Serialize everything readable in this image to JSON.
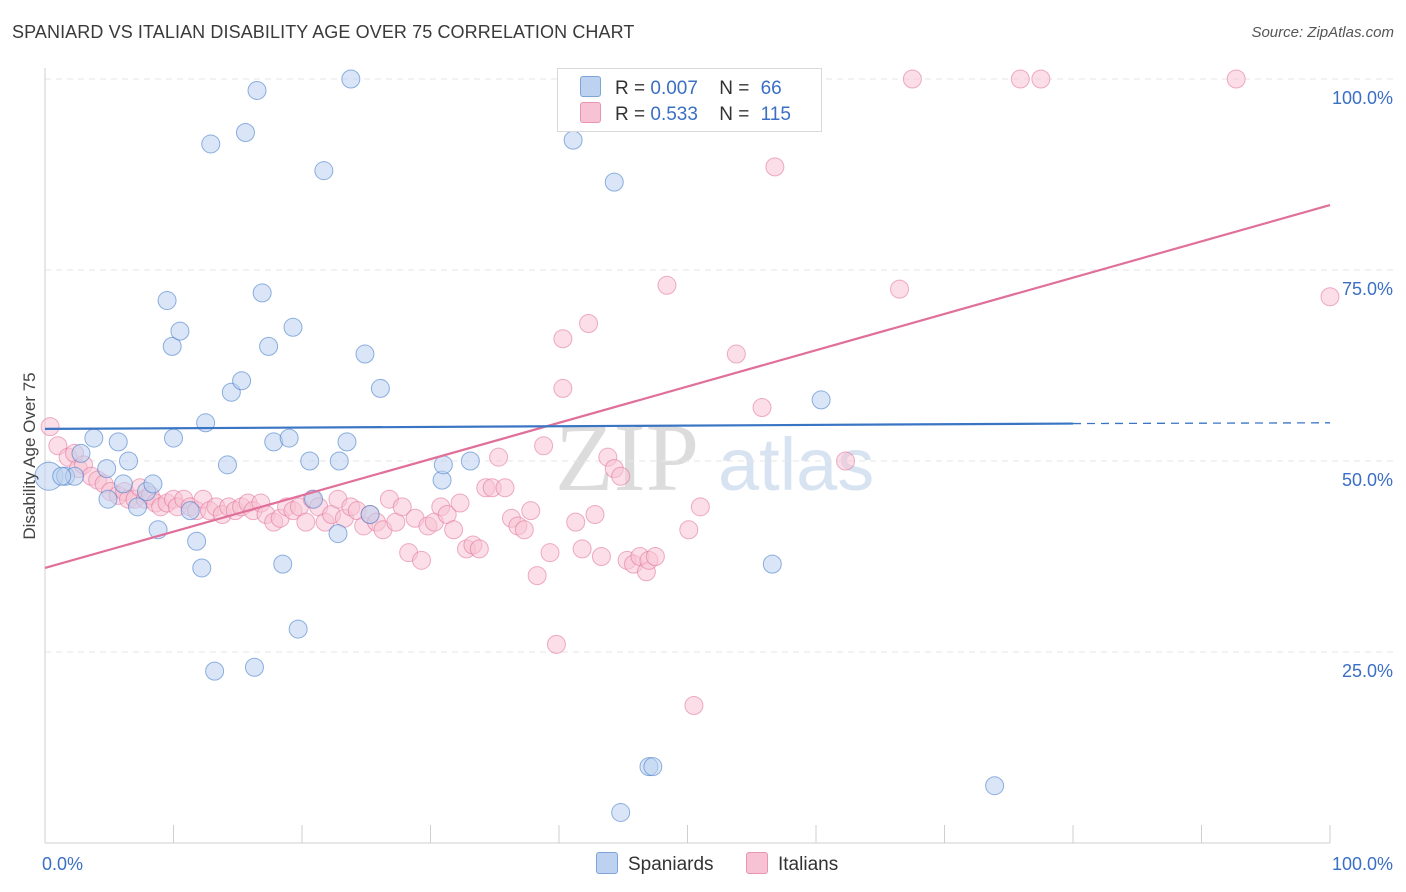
{
  "header": {
    "title": "SPANIARD VS ITALIAN DISABILITY AGE OVER 75 CORRELATION CHART",
    "source": "Source: ZipAtlas.com"
  },
  "legend": {
    "rows": [
      {
        "r_label": "R =",
        "r_value": "0.007",
        "n_label": "N =",
        "n_value": "66"
      },
      {
        "r_label": "R =",
        "r_value": "0.533",
        "n_label": "N =",
        "n_value": "115"
      }
    ],
    "bottom": [
      "Spaniards",
      "Italians"
    ]
  },
  "watermark": {
    "zip": "ZIP",
    "atlas": "atlas"
  },
  "chart_data": {
    "type": "scatter",
    "ylabel": "Disability Age Over 75",
    "xlim": [
      0,
      100
    ],
    "ylim": [
      0,
      100
    ],
    "x_tick_labels": [
      "0.0%",
      "100.0%"
    ],
    "y_ticks": [
      {
        "value": 25,
        "label": "25.0%"
      },
      {
        "value": 50,
        "label": "50.0%"
      },
      {
        "value": 75,
        "label": "75.0%"
      },
      {
        "value": 100,
        "label": "100.0%"
      }
    ],
    "grid": true,
    "colors": {
      "spaniards": "#3a75c4",
      "italians": "#e0709a",
      "spaniards_fill": "#bcd2f0",
      "italians_fill": "#f7c2d3",
      "axis_label": "#3a6fc4"
    },
    "series": [
      {
        "name": "Spaniards",
        "trend": {
          "x0": 0,
          "y0": 54.2,
          "x1": 80,
          "y1": 54.9,
          "dash_to_x": 100,
          "dash_to_y": 55.0
        },
        "points": [
          [
            0.3,
            48
          ],
          [
            1.6,
            48
          ],
          [
            2.3,
            48
          ],
          [
            1.3,
            48
          ],
          [
            2.8,
            51
          ],
          [
            3.8,
            53
          ],
          [
            4.8,
            49
          ],
          [
            4.9,
            45
          ],
          [
            5.7,
            52.5
          ],
          [
            6.1,
            47
          ],
          [
            6.5,
            50
          ],
          [
            7.2,
            44
          ],
          [
            7.9,
            46
          ],
          [
            8.4,
            47
          ],
          [
            8.8,
            41
          ],
          [
            9.5,
            71
          ],
          [
            9.9,
            65
          ],
          [
            10,
            53
          ],
          [
            10.5,
            67
          ],
          [
            11.3,
            43.5
          ],
          [
            11.8,
            39.5
          ],
          [
            12.2,
            36
          ],
          [
            12.5,
            55
          ],
          [
            12.9,
            91.5
          ],
          [
            13.2,
            22.5
          ],
          [
            14.2,
            49.5
          ],
          [
            14.5,
            59
          ],
          [
            15.3,
            60.5
          ],
          [
            15.6,
            93
          ],
          [
            16.3,
            23
          ],
          [
            16.5,
            98.5
          ],
          [
            16.9,
            72
          ],
          [
            17.4,
            65
          ],
          [
            17.8,
            52.5
          ],
          [
            18.5,
            36.5
          ],
          [
            19,
            53
          ],
          [
            19.3,
            67.5
          ],
          [
            19.7,
            28
          ],
          [
            20.6,
            50
          ],
          [
            20.9,
            45
          ],
          [
            21.7,
            88
          ],
          [
            22.8,
            40.5
          ],
          [
            22.9,
            50
          ],
          [
            23.5,
            52.5
          ],
          [
            23.8,
            100
          ],
          [
            24.9,
            64
          ],
          [
            25.3,
            43
          ],
          [
            26.1,
            59.5
          ],
          [
            30.9,
            47.5
          ],
          [
            31,
            49.5
          ],
          [
            33.1,
            50
          ],
          [
            41.1,
            92
          ],
          [
            44.3,
            86.5
          ],
          [
            44.8,
            4
          ],
          [
            47,
            10
          ],
          [
            47.3,
            10
          ],
          [
            56.6,
            36.5
          ],
          [
            60.4,
            58
          ],
          [
            73.9,
            7.5
          ]
        ]
      },
      {
        "name": "Italians",
        "trend": {
          "x0": 0,
          "y0": 36,
          "x1": 100,
          "y1": 83.5
        },
        "points": [
          [
            0.4,
            54.5
          ],
          [
            1,
            52
          ],
          [
            1.8,
            50.5
          ],
          [
            2.3,
            51
          ],
          [
            2.6,
            49
          ],
          [
            3,
            49.5
          ],
          [
            3.6,
            48
          ],
          [
            4.1,
            47.5
          ],
          [
            4.6,
            47
          ],
          [
            5.1,
            46
          ],
          [
            5.7,
            45.5
          ],
          [
            6.2,
            46
          ],
          [
            6.5,
            45
          ],
          [
            7,
            45
          ],
          [
            7.4,
            46.5
          ],
          [
            7.8,
            45
          ],
          [
            8.2,
            45.5
          ],
          [
            8.6,
            44.5
          ],
          [
            9,
            44
          ],
          [
            9.5,
            44.5
          ],
          [
            10,
            45
          ],
          [
            10.3,
            44
          ],
          [
            10.8,
            45
          ],
          [
            11.3,
            44
          ],
          [
            11.8,
            43.5
          ],
          [
            12.3,
            45
          ],
          [
            12.8,
            43.5
          ],
          [
            13.3,
            44
          ],
          [
            13.8,
            43
          ],
          [
            14.3,
            44
          ],
          [
            14.8,
            43.5
          ],
          [
            15.3,
            44
          ],
          [
            15.8,
            44.5
          ],
          [
            16.2,
            43.5
          ],
          [
            16.8,
            44.5
          ],
          [
            17.2,
            43
          ],
          [
            17.8,
            42
          ],
          [
            18.3,
            42.5
          ],
          [
            18.8,
            44
          ],
          [
            19.3,
            43.5
          ],
          [
            19.8,
            44
          ],
          [
            20.3,
            42
          ],
          [
            20.8,
            45
          ],
          [
            21.3,
            44
          ],
          [
            21.8,
            42
          ],
          [
            22.3,
            43
          ],
          [
            22.8,
            45
          ],
          [
            23.3,
            42.5
          ],
          [
            23.8,
            44
          ],
          [
            24.3,
            43.5
          ],
          [
            24.8,
            41.5
          ],
          [
            25.3,
            43
          ],
          [
            25.8,
            42
          ],
          [
            26.3,
            41
          ],
          [
            26.8,
            45
          ],
          [
            27.3,
            42
          ],
          [
            27.8,
            44
          ],
          [
            28.3,
            38
          ],
          [
            28.8,
            42.5
          ],
          [
            29.3,
            37
          ],
          [
            29.8,
            41.5
          ],
          [
            30.3,
            42
          ],
          [
            30.8,
            44
          ],
          [
            31.3,
            43
          ],
          [
            31.8,
            41
          ],
          [
            32.3,
            44.5
          ],
          [
            32.8,
            38.5
          ],
          [
            33.3,
            39
          ],
          [
            33.8,
            38.5
          ],
          [
            34.3,
            46.5
          ],
          [
            34.8,
            46.5
          ],
          [
            35.3,
            50.5
          ],
          [
            35.8,
            46.5
          ],
          [
            36.3,
            42.5
          ],
          [
            36.8,
            41.5
          ],
          [
            37.3,
            41
          ],
          [
            37.8,
            43.5
          ],
          [
            38.3,
            35
          ],
          [
            38.8,
            52
          ],
          [
            39.3,
            38
          ],
          [
            39.8,
            26
          ],
          [
            40.3,
            66
          ],
          [
            40.3,
            59.5
          ],
          [
            41.3,
            42
          ],
          [
            41.8,
            38.5
          ],
          [
            42.3,
            68
          ],
          [
            42.8,
            43
          ],
          [
            43.3,
            37.5
          ],
          [
            43.8,
            50.5
          ],
          [
            44.3,
            49
          ],
          [
            44.8,
            48
          ],
          [
            45.3,
            37
          ],
          [
            45.8,
            36.5
          ],
          [
            46.3,
            37.5
          ],
          [
            46.8,
            35.5
          ],
          [
            47,
            37
          ],
          [
            47.5,
            37.5
          ],
          [
            48.4,
            73
          ],
          [
            49.1,
            100
          ],
          [
            50.1,
            41
          ],
          [
            50.5,
            18
          ],
          [
            51,
            44
          ],
          [
            52.5,
            100
          ],
          [
            53.8,
            64
          ],
          [
            55.8,
            57
          ],
          [
            56.8,
            88.5
          ],
          [
            62.3,
            50
          ],
          [
            66.5,
            72.5
          ],
          [
            67.5,
            100
          ],
          [
            75.9,
            100
          ],
          [
            77.5,
            100
          ],
          [
            92.7,
            100
          ],
          [
            100,
            71.5
          ]
        ]
      }
    ]
  }
}
